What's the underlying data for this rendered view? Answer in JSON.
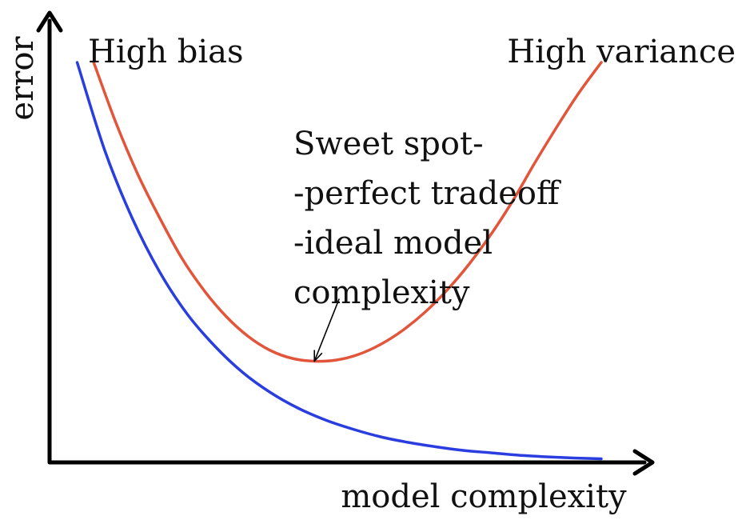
{
  "chart_data": {
    "type": "line",
    "title": "",
    "xlabel": "model complexity",
    "ylabel": "error",
    "xlim": [
      0,
      100
    ],
    "ylim": [
      0,
      100
    ],
    "grid": false,
    "legend": "none",
    "series": [
      {
        "color": "#2a3ee0",
        "x": [
          5,
          10,
          15,
          20,
          25,
          30,
          35,
          40,
          45,
          50,
          55,
          60,
          65,
          70,
          75,
          80,
          85,
          90,
          95,
          100
        ],
        "y": [
          100,
          78,
          61,
          47.5,
          37,
          29,
          22.5,
          17.5,
          13.6,
          10.6,
          8.3,
          6.4,
          5,
          3.9,
          3,
          2.4,
          1.8,
          1.4,
          1.1,
          0.9
        ]
      },
      {
        "color": "#e2553a",
        "x": [
          8,
          12,
          16,
          20,
          24,
          28,
          32,
          36,
          40,
          44,
          48,
          52,
          56,
          60,
          64,
          68,
          72,
          76,
          80,
          84,
          88,
          92,
          96,
          100
        ],
        "y": [
          100,
          85,
          72,
          61,
          51,
          43,
          36.5,
          31.5,
          28,
          26,
          25.3,
          25.6,
          27,
          29.5,
          33,
          37.5,
          43,
          49.5,
          57,
          65.5,
          75,
          84,
          92.5,
          100
        ]
      }
    ],
    "annotations": {
      "left_label": "High bias",
      "right_label": "High variance",
      "sweet_spot": {
        "lines": [
          "Sweet spot-",
          "-perfect tradeoff",
          "-ideal model",
          "complexity"
        ],
        "point": [
          48,
          25.3
        ]
      }
    }
  }
}
